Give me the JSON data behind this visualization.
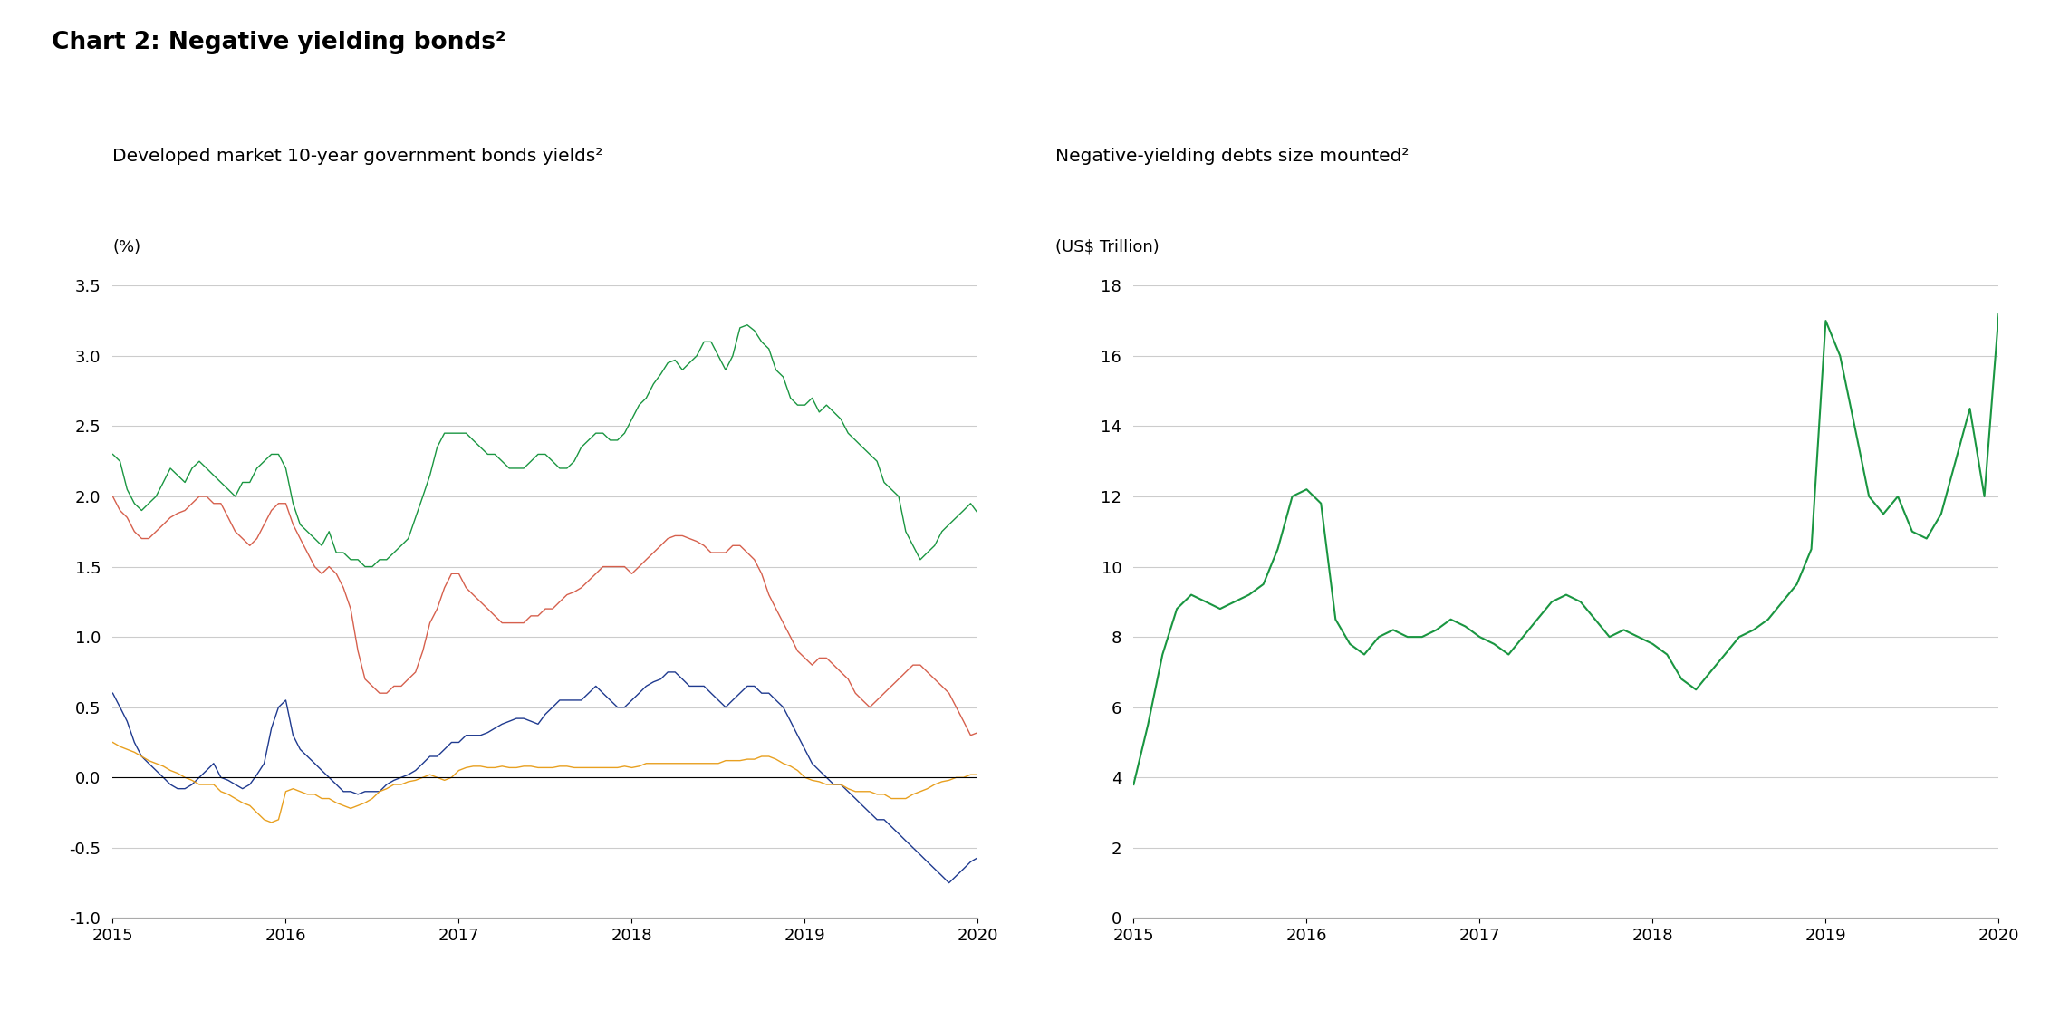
{
  "title": "Chart 2: Negative yielding bonds²",
  "left_subtitle": "Developed market 10-year government bonds yields²",
  "right_subtitle": "Negative-yielding debts size mounted²",
  "left_ylabel": "(%)",
  "right_ylabel": "(US$ Trillion)",
  "left_ylim": [
    -1.0,
    3.5
  ],
  "right_ylim": [
    0,
    18
  ],
  "left_yticks": [
    -1.0,
    -0.5,
    0.0,
    0.5,
    1.0,
    1.5,
    2.0,
    2.5,
    3.0,
    3.5
  ],
  "right_yticks": [
    0,
    2,
    4,
    6,
    8,
    10,
    12,
    14,
    16,
    18
  ],
  "background_color": "#ffffff",
  "line_color_green": "#1a9641",
  "line_color_blue": "#1f3a8f",
  "line_color_red": "#d6604d",
  "line_color_orange": "#e8a020",
  "gridline_color": "#cccccc",
  "us_x": [
    2015.0,
    2015.042,
    2015.083,
    2015.125,
    2015.167,
    2015.208,
    2015.25,
    2015.292,
    2015.333,
    2015.375,
    2015.417,
    2015.458,
    2015.5,
    2015.542,
    2015.583,
    2015.625,
    2015.667,
    2015.708,
    2015.75,
    2015.792,
    2015.833,
    2015.875,
    2015.917,
    2015.958,
    2016.0,
    2016.042,
    2016.083,
    2016.125,
    2016.167,
    2016.208,
    2016.25,
    2016.292,
    2016.333,
    2016.375,
    2016.417,
    2016.458,
    2016.5,
    2016.542,
    2016.583,
    2016.625,
    2016.667,
    2016.708,
    2016.75,
    2016.792,
    2016.833,
    2016.875,
    2016.917,
    2016.958,
    2017.0,
    2017.042,
    2017.083,
    2017.125,
    2017.167,
    2017.208,
    2017.25,
    2017.292,
    2017.333,
    2017.375,
    2017.417,
    2017.458,
    2017.5,
    2017.542,
    2017.583,
    2017.625,
    2017.667,
    2017.708,
    2017.75,
    2017.792,
    2017.833,
    2017.875,
    2017.917,
    2017.958,
    2018.0,
    2018.042,
    2018.083,
    2018.125,
    2018.167,
    2018.208,
    2018.25,
    2018.292,
    2018.333,
    2018.375,
    2018.417,
    2018.458,
    2018.5,
    2018.542,
    2018.583,
    2018.625,
    2018.667,
    2018.708,
    2018.75,
    2018.792,
    2018.833,
    2018.875,
    2018.917,
    2018.958,
    2019.0,
    2019.042,
    2019.083,
    2019.125,
    2019.167,
    2019.208,
    2019.25,
    2019.292,
    2019.333,
    2019.375,
    2019.417,
    2019.458,
    2019.5,
    2019.542,
    2019.583,
    2019.625,
    2019.667,
    2019.708,
    2019.75,
    2019.792,
    2019.833,
    2019.875,
    2019.917,
    2019.958,
    2020.0
  ],
  "us_y": [
    2.3,
    2.25,
    2.05,
    1.95,
    1.9,
    1.95,
    2.0,
    2.1,
    2.2,
    2.15,
    2.1,
    2.2,
    2.25,
    2.2,
    2.15,
    2.1,
    2.05,
    2.0,
    2.1,
    2.1,
    2.2,
    2.25,
    2.3,
    2.3,
    2.2,
    1.95,
    1.8,
    1.75,
    1.7,
    1.65,
    1.75,
    1.6,
    1.6,
    1.55,
    1.55,
    1.5,
    1.5,
    1.55,
    1.55,
    1.6,
    1.65,
    1.7,
    1.85,
    2.0,
    2.15,
    2.35,
    2.45,
    2.45,
    2.45,
    2.45,
    2.4,
    2.35,
    2.3,
    2.3,
    2.25,
    2.2,
    2.2,
    2.2,
    2.25,
    2.3,
    2.3,
    2.25,
    2.2,
    2.2,
    2.25,
    2.35,
    2.4,
    2.45,
    2.45,
    2.4,
    2.4,
    2.45,
    2.55,
    2.65,
    2.7,
    2.8,
    2.87,
    2.95,
    2.97,
    2.9,
    2.95,
    3.0,
    3.1,
    3.1,
    3.0,
    2.9,
    3.0,
    3.2,
    3.22,
    3.18,
    3.1,
    3.05,
    2.9,
    2.85,
    2.7,
    2.65,
    2.65,
    2.7,
    2.6,
    2.65,
    2.6,
    2.55,
    2.45,
    2.4,
    2.35,
    2.3,
    2.25,
    2.1,
    2.05,
    2.0,
    1.75,
    1.65,
    1.55,
    1.6,
    1.65,
    1.75,
    1.8,
    1.85,
    1.9,
    1.95,
    1.88
  ],
  "de_x": [
    2015.0,
    2015.042,
    2015.083,
    2015.125,
    2015.167,
    2015.208,
    2015.25,
    2015.292,
    2015.333,
    2015.375,
    2015.417,
    2015.458,
    2015.5,
    2015.542,
    2015.583,
    2015.625,
    2015.667,
    2015.708,
    2015.75,
    2015.792,
    2015.833,
    2015.875,
    2015.917,
    2015.958,
    2016.0,
    2016.042,
    2016.083,
    2016.125,
    2016.167,
    2016.208,
    2016.25,
    2016.292,
    2016.333,
    2016.375,
    2016.417,
    2016.458,
    2016.5,
    2016.542,
    2016.583,
    2016.625,
    2016.667,
    2016.708,
    2016.75,
    2016.792,
    2016.833,
    2016.875,
    2016.917,
    2016.958,
    2017.0,
    2017.042,
    2017.083,
    2017.125,
    2017.167,
    2017.208,
    2017.25,
    2017.292,
    2017.333,
    2017.375,
    2017.417,
    2017.458,
    2017.5,
    2017.542,
    2017.583,
    2017.625,
    2017.667,
    2017.708,
    2017.75,
    2017.792,
    2017.833,
    2017.875,
    2017.917,
    2017.958,
    2018.0,
    2018.042,
    2018.083,
    2018.125,
    2018.167,
    2018.208,
    2018.25,
    2018.292,
    2018.333,
    2018.375,
    2018.417,
    2018.458,
    2018.5,
    2018.542,
    2018.583,
    2018.625,
    2018.667,
    2018.708,
    2018.75,
    2018.792,
    2018.833,
    2018.875,
    2018.917,
    2018.958,
    2019.0,
    2019.042,
    2019.083,
    2019.125,
    2019.167,
    2019.208,
    2019.25,
    2019.292,
    2019.333,
    2019.375,
    2019.417,
    2019.458,
    2019.5,
    2019.542,
    2019.583,
    2019.625,
    2019.667,
    2019.708,
    2019.75,
    2019.792,
    2019.833,
    2019.875,
    2019.917,
    2019.958,
    2020.0
  ],
  "de_y": [
    0.6,
    0.5,
    0.4,
    0.25,
    0.15,
    0.1,
    0.05,
    0.0,
    -0.05,
    -0.08,
    -0.08,
    -0.05,
    0.0,
    0.05,
    0.1,
    0.0,
    -0.02,
    -0.05,
    -0.08,
    -0.05,
    0.02,
    0.1,
    0.35,
    0.5,
    0.55,
    0.3,
    0.2,
    0.15,
    0.1,
    0.05,
    0.0,
    -0.05,
    -0.1,
    -0.1,
    -0.12,
    -0.1,
    -0.1,
    -0.1,
    -0.05,
    -0.02,
    0.0,
    0.02,
    0.05,
    0.1,
    0.15,
    0.15,
    0.2,
    0.25,
    0.25,
    0.3,
    0.3,
    0.3,
    0.32,
    0.35,
    0.38,
    0.4,
    0.42,
    0.42,
    0.4,
    0.38,
    0.45,
    0.5,
    0.55,
    0.55,
    0.55,
    0.55,
    0.6,
    0.65,
    0.6,
    0.55,
    0.5,
    0.5,
    0.55,
    0.6,
    0.65,
    0.68,
    0.7,
    0.75,
    0.75,
    0.7,
    0.65,
    0.65,
    0.65,
    0.6,
    0.55,
    0.5,
    0.55,
    0.6,
    0.65,
    0.65,
    0.6,
    0.6,
    0.55,
    0.5,
    0.4,
    0.3,
    0.2,
    0.1,
    0.05,
    0.0,
    -0.05,
    -0.05,
    -0.1,
    -0.15,
    -0.2,
    -0.25,
    -0.3,
    -0.3,
    -0.35,
    -0.4,
    -0.45,
    -0.5,
    -0.55,
    -0.6,
    -0.65,
    -0.7,
    -0.75,
    -0.7,
    -0.65,
    -0.6,
    -0.57
  ],
  "uk_x": [
    2015.0,
    2015.042,
    2015.083,
    2015.125,
    2015.167,
    2015.208,
    2015.25,
    2015.292,
    2015.333,
    2015.375,
    2015.417,
    2015.458,
    2015.5,
    2015.542,
    2015.583,
    2015.625,
    2015.667,
    2015.708,
    2015.75,
    2015.792,
    2015.833,
    2015.875,
    2015.917,
    2015.958,
    2016.0,
    2016.042,
    2016.083,
    2016.125,
    2016.167,
    2016.208,
    2016.25,
    2016.292,
    2016.333,
    2016.375,
    2016.417,
    2016.458,
    2016.5,
    2016.542,
    2016.583,
    2016.625,
    2016.667,
    2016.708,
    2016.75,
    2016.792,
    2016.833,
    2016.875,
    2016.917,
    2016.958,
    2017.0,
    2017.042,
    2017.083,
    2017.125,
    2017.167,
    2017.208,
    2017.25,
    2017.292,
    2017.333,
    2017.375,
    2017.417,
    2017.458,
    2017.5,
    2017.542,
    2017.583,
    2017.625,
    2017.667,
    2017.708,
    2017.75,
    2017.792,
    2017.833,
    2017.875,
    2017.917,
    2017.958,
    2018.0,
    2018.042,
    2018.083,
    2018.125,
    2018.167,
    2018.208,
    2018.25,
    2018.292,
    2018.333,
    2018.375,
    2018.417,
    2018.458,
    2018.5,
    2018.542,
    2018.583,
    2018.625,
    2018.667,
    2018.708,
    2018.75,
    2018.792,
    2018.833,
    2018.875,
    2018.917,
    2018.958,
    2019.0,
    2019.042,
    2019.083,
    2019.125,
    2019.167,
    2019.208,
    2019.25,
    2019.292,
    2019.333,
    2019.375,
    2019.417,
    2019.458,
    2019.5,
    2019.542,
    2019.583,
    2019.625,
    2019.667,
    2019.708,
    2019.75,
    2019.792,
    2019.833,
    2019.875,
    2019.917,
    2019.958,
    2020.0
  ],
  "uk_y": [
    2.0,
    1.9,
    1.85,
    1.75,
    1.7,
    1.7,
    1.75,
    1.8,
    1.85,
    1.88,
    1.9,
    1.95,
    2.0,
    2.0,
    1.95,
    1.95,
    1.85,
    1.75,
    1.7,
    1.65,
    1.7,
    1.8,
    1.9,
    1.95,
    1.95,
    1.8,
    1.7,
    1.6,
    1.5,
    1.45,
    1.5,
    1.45,
    1.35,
    1.2,
    0.9,
    0.7,
    0.65,
    0.6,
    0.6,
    0.65,
    0.65,
    0.7,
    0.75,
    0.9,
    1.1,
    1.2,
    1.35,
    1.45,
    1.45,
    1.35,
    1.3,
    1.25,
    1.2,
    1.15,
    1.1,
    1.1,
    1.1,
    1.1,
    1.15,
    1.15,
    1.2,
    1.2,
    1.25,
    1.3,
    1.32,
    1.35,
    1.4,
    1.45,
    1.5,
    1.5,
    1.5,
    1.5,
    1.45,
    1.5,
    1.55,
    1.6,
    1.65,
    1.7,
    1.72,
    1.72,
    1.7,
    1.68,
    1.65,
    1.6,
    1.6,
    1.6,
    1.65,
    1.65,
    1.6,
    1.55,
    1.45,
    1.3,
    1.2,
    1.1,
    1.0,
    0.9,
    0.85,
    0.8,
    0.85,
    0.85,
    0.8,
    0.75,
    0.7,
    0.6,
    0.55,
    0.5,
    0.55,
    0.6,
    0.65,
    0.7,
    0.75,
    0.8,
    0.8,
    0.75,
    0.7,
    0.65,
    0.6,
    0.5,
    0.4,
    0.3,
    0.32
  ],
  "jp_x": [
    2015.0,
    2015.042,
    2015.083,
    2015.125,
    2015.167,
    2015.208,
    2015.25,
    2015.292,
    2015.333,
    2015.375,
    2015.417,
    2015.458,
    2015.5,
    2015.542,
    2015.583,
    2015.625,
    2015.667,
    2015.708,
    2015.75,
    2015.792,
    2015.833,
    2015.875,
    2015.917,
    2015.958,
    2016.0,
    2016.042,
    2016.083,
    2016.125,
    2016.167,
    2016.208,
    2016.25,
    2016.292,
    2016.333,
    2016.375,
    2016.417,
    2016.458,
    2016.5,
    2016.542,
    2016.583,
    2016.625,
    2016.667,
    2016.708,
    2016.75,
    2016.792,
    2016.833,
    2016.875,
    2016.917,
    2016.958,
    2017.0,
    2017.042,
    2017.083,
    2017.125,
    2017.167,
    2017.208,
    2017.25,
    2017.292,
    2017.333,
    2017.375,
    2017.417,
    2017.458,
    2017.5,
    2017.542,
    2017.583,
    2017.625,
    2017.667,
    2017.708,
    2017.75,
    2017.792,
    2017.833,
    2017.875,
    2017.917,
    2017.958,
    2018.0,
    2018.042,
    2018.083,
    2018.125,
    2018.167,
    2018.208,
    2018.25,
    2018.292,
    2018.333,
    2018.375,
    2018.417,
    2018.458,
    2018.5,
    2018.542,
    2018.583,
    2018.625,
    2018.667,
    2018.708,
    2018.75,
    2018.792,
    2018.833,
    2018.875,
    2018.917,
    2018.958,
    2019.0,
    2019.042,
    2019.083,
    2019.125,
    2019.167,
    2019.208,
    2019.25,
    2019.292,
    2019.333,
    2019.375,
    2019.417,
    2019.458,
    2019.5,
    2019.542,
    2019.583,
    2019.625,
    2019.667,
    2019.708,
    2019.75,
    2019.792,
    2019.833,
    2019.875,
    2019.917,
    2019.958,
    2020.0
  ],
  "jp_y": [
    0.25,
    0.22,
    0.2,
    0.18,
    0.15,
    0.12,
    0.1,
    0.08,
    0.05,
    0.03,
    0.0,
    -0.02,
    -0.05,
    -0.05,
    -0.05,
    -0.1,
    -0.12,
    -0.15,
    -0.18,
    -0.2,
    -0.25,
    -0.3,
    -0.32,
    -0.3,
    -0.1,
    -0.08,
    -0.1,
    -0.12,
    -0.12,
    -0.15,
    -0.15,
    -0.18,
    -0.2,
    -0.22,
    -0.2,
    -0.18,
    -0.15,
    -0.1,
    -0.08,
    -0.05,
    -0.05,
    -0.03,
    -0.02,
    0.0,
    0.02,
    0.0,
    -0.02,
    0.0,
    0.05,
    0.07,
    0.08,
    0.08,
    0.07,
    0.07,
    0.08,
    0.07,
    0.07,
    0.08,
    0.08,
    0.07,
    0.07,
    0.07,
    0.08,
    0.08,
    0.07,
    0.07,
    0.07,
    0.07,
    0.07,
    0.07,
    0.07,
    0.08,
    0.07,
    0.08,
    0.1,
    0.1,
    0.1,
    0.1,
    0.1,
    0.1,
    0.1,
    0.1,
    0.1,
    0.1,
    0.1,
    0.12,
    0.12,
    0.12,
    0.13,
    0.13,
    0.15,
    0.15,
    0.13,
    0.1,
    0.08,
    0.05,
    0.0,
    -0.02,
    -0.03,
    -0.05,
    -0.05,
    -0.05,
    -0.08,
    -0.1,
    -0.1,
    -0.1,
    -0.12,
    -0.12,
    -0.15,
    -0.15,
    -0.15,
    -0.12,
    -0.1,
    -0.08,
    -0.05,
    -0.03,
    -0.02,
    0.0,
    0.0,
    0.02,
    0.02
  ],
  "rhs_x": [
    2015.0,
    2015.083,
    2015.167,
    2015.25,
    2015.333,
    2015.417,
    2015.5,
    2015.583,
    2015.667,
    2015.75,
    2015.833,
    2015.917,
    2016.0,
    2016.083,
    2016.167,
    2016.25,
    2016.333,
    2016.417,
    2016.5,
    2016.583,
    2016.667,
    2016.75,
    2016.833,
    2016.917,
    2017.0,
    2017.083,
    2017.167,
    2017.25,
    2017.333,
    2017.417,
    2017.5,
    2017.583,
    2017.667,
    2017.75,
    2017.833,
    2017.917,
    2018.0,
    2018.083,
    2018.167,
    2018.25,
    2018.333,
    2018.417,
    2018.5,
    2018.583,
    2018.667,
    2018.75,
    2018.833,
    2018.917,
    2019.0,
    2019.083,
    2019.167,
    2019.25,
    2019.333,
    2019.417,
    2019.5,
    2019.583,
    2019.667,
    2019.75,
    2019.833,
    2019.917,
    2020.0
  ],
  "rhs_y": [
    3.8,
    5.5,
    7.5,
    8.8,
    9.2,
    9.0,
    8.8,
    9.0,
    9.2,
    9.5,
    10.5,
    12.0,
    12.2,
    11.8,
    8.5,
    7.8,
    7.5,
    8.0,
    8.2,
    8.0,
    8.0,
    8.2,
    8.5,
    8.3,
    8.0,
    7.8,
    7.5,
    8.0,
    8.5,
    9.0,
    9.2,
    9.0,
    8.5,
    8.0,
    8.2,
    8.0,
    7.8,
    7.5,
    6.8,
    6.5,
    7.0,
    7.5,
    8.0,
    8.2,
    8.5,
    9.0,
    9.5,
    10.5,
    17.0,
    16.0,
    14.0,
    12.0,
    11.5,
    12.0,
    11.0,
    10.8,
    11.5,
    13.0,
    14.5,
    12.0,
    17.2
  ]
}
